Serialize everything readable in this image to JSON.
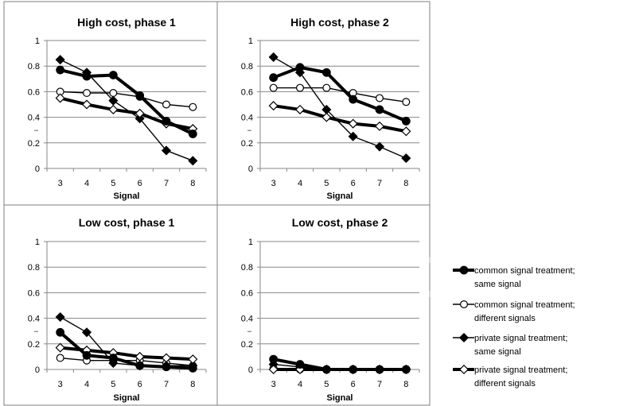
{
  "chart_data": [
    {
      "type": "line",
      "title": "High cost, phase 1",
      "xlabel": "Signal",
      "ylabel": "",
      "x": [
        3,
        4,
        5,
        6,
        7,
        8
      ],
      "ylim": [
        0,
        1
      ],
      "yticks": [
        "0",
        "0.2",
        "0.4",
        "0.6",
        "0.8",
        "1"
      ],
      "series": [
        {
          "name": "common signal treatment; same signal",
          "values": [
            0.77,
            0.72,
            0.73,
            0.57,
            0.37,
            0.27
          ]
        },
        {
          "name": "common signal treatment; different signals",
          "values": [
            0.6,
            0.59,
            0.59,
            0.56,
            0.5,
            0.48
          ]
        },
        {
          "name": "private signal treatment; same signal",
          "values": [
            0.85,
            0.75,
            0.53,
            0.39,
            0.14,
            0.06
          ]
        },
        {
          "name": "private signal treatment; different signals",
          "values": [
            0.55,
            0.5,
            0.46,
            0.43,
            0.35,
            0.31
          ]
        }
      ]
    },
    {
      "type": "line",
      "title": "High cost, phase 2",
      "xlabel": "Signal",
      "ylabel": "",
      "x": [
        3,
        4,
        5,
        6,
        7,
        8
      ],
      "ylim": [
        0,
        1
      ],
      "yticks": [
        "0",
        "0.2",
        "0.4",
        "0.6",
        "0.8",
        "1"
      ],
      "series": [
        {
          "name": "common signal treatment; same signal",
          "values": [
            0.71,
            0.79,
            0.75,
            0.54,
            0.46,
            0.37
          ]
        },
        {
          "name": "common signal treatment; different signals",
          "values": [
            0.63,
            0.63,
            0.63,
            0.59,
            0.55,
            0.52
          ]
        },
        {
          "name": "private signal treatment; same signal",
          "values": [
            0.87,
            0.75,
            0.46,
            0.25,
            0.17,
            0.08
          ]
        },
        {
          "name": "private signal treatment; different signals",
          "values": [
            0.49,
            0.46,
            0.4,
            0.35,
            0.33,
            0.29
          ]
        }
      ]
    },
    {
      "type": "line",
      "title": "Low cost, phase 1",
      "xlabel": "Signal",
      "ylabel": "",
      "x": [
        3,
        4,
        5,
        6,
        7,
        8
      ],
      "ylim": [
        0,
        1
      ],
      "yticks": [
        "0",
        "0.2",
        "0.4",
        "0.6",
        "0.8",
        "1"
      ],
      "series": [
        {
          "name": "common signal treatment; same signal",
          "values": [
            0.29,
            0.11,
            0.09,
            0.03,
            0.02,
            0.01
          ]
        },
        {
          "name": "common signal treatment; different signals",
          "values": [
            0.09,
            0.07,
            0.07,
            0.07,
            0.05,
            0.03
          ]
        },
        {
          "name": "private signal treatment; same signal",
          "values": [
            0.41,
            0.29,
            0.05,
            0.03,
            0.03,
            0.03
          ]
        },
        {
          "name": "private signal treatment; different signals",
          "values": [
            0.17,
            0.15,
            0.13,
            0.1,
            0.09,
            0.08
          ]
        }
      ]
    },
    {
      "type": "line",
      "title": "Low cost, phase 2",
      "xlabel": "Signal",
      "ylabel": "",
      "x": [
        3,
        4,
        5,
        6,
        7,
        8
      ],
      "ylim": [
        0,
        1
      ],
      "yticks": [
        "0",
        "0.2",
        "0.4",
        "0.6",
        "0.8",
        "1"
      ],
      "series": [
        {
          "name": "common signal treatment; same signal",
          "values": [
            0.08,
            0.04,
            0.0,
            0.0,
            0.0,
            0.0
          ]
        },
        {
          "name": "common signal treatment; different signals",
          "values": [
            0.01,
            0.0,
            0.0,
            0.0,
            0.0,
            0.0
          ]
        },
        {
          "name": "private signal treatment; same signal",
          "values": [
            0.04,
            0.02,
            0.0,
            0.0,
            0.0,
            0.0
          ]
        },
        {
          "name": "private signal treatment; different signals",
          "values": [
            0.0,
            0.0,
            0.0,
            0.0,
            0.0,
            0.0
          ]
        }
      ]
    }
  ],
  "legend": {
    "placement": "right",
    "entries": [
      {
        "line1": "common signal treatment;",
        "line2": "same signal"
      },
      {
        "line1": "common signal treatment;",
        "line2": "different signals"
      },
      {
        "line1": "private signal treatment;",
        "line2": "same signal"
      },
      {
        "line1": "private signal treatment;",
        "line2": "different signals"
      }
    ]
  },
  "series_styles": [
    {
      "marker": "circle",
      "fill": "#000000",
      "stroke_weight": "thick"
    },
    {
      "marker": "circle",
      "fill": "#ffffff",
      "stroke_weight": "thin"
    },
    {
      "marker": "diamond",
      "fill": "#000000",
      "stroke_weight": "thin"
    },
    {
      "marker": "diamond",
      "fill": "#ffffff",
      "stroke_weight": "thick"
    }
  ]
}
